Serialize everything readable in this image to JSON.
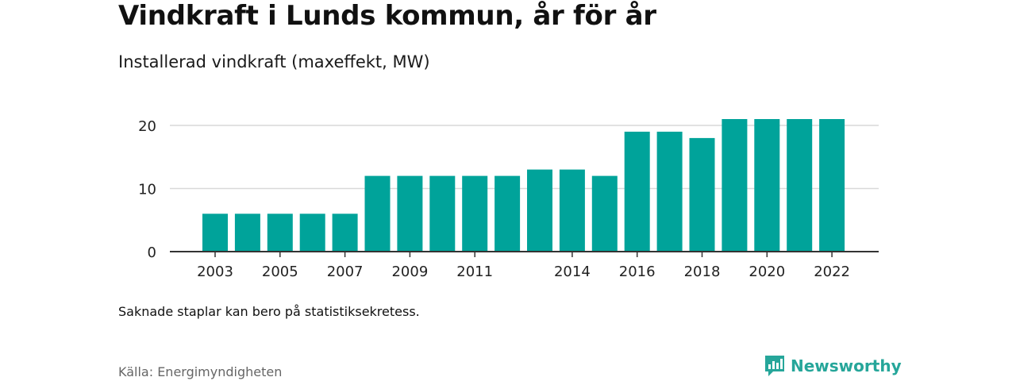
{
  "header": {
    "title": "Vindkraft i Lunds kommun, år för år",
    "subtitle": "Installerad vindkraft (maxeffekt, MW)"
  },
  "footer": {
    "note": "Saknade staplar kan bero på statistiksekretess.",
    "source": "Källa: Energimyndigheten",
    "brand": "Newsworthy"
  },
  "colors": {
    "bar": "#00A39A",
    "brand": "#26A69A"
  },
  "chart_data": {
    "type": "bar",
    "title": "Vindkraft i Lunds kommun, år för år",
    "subtitle": "Installerad vindkraft (maxeffekt, MW)",
    "xlabel": "",
    "ylabel": "",
    "categories": [
      "2003",
      "2004",
      "2005",
      "2006",
      "2007",
      "2008",
      "2009",
      "2010",
      "2011",
      "2012",
      "2013",
      "2014",
      "2015",
      "2016",
      "2017",
      "2018",
      "2019",
      "2020",
      "2021",
      "2022"
    ],
    "values": [
      6,
      6,
      6,
      6,
      6,
      12,
      12,
      12,
      12,
      12,
      13,
      13,
      12,
      19,
      19,
      18,
      21,
      21,
      21,
      21
    ],
    "x_tick_labels": [
      "2003",
      "2005",
      "2007",
      "2009",
      "2011",
      "2014",
      "2016",
      "2018",
      "2020",
      "2022"
    ],
    "y_ticks": [
      0,
      10,
      20
    ],
    "ylim": [
      0,
      22
    ],
    "grid": true
  }
}
